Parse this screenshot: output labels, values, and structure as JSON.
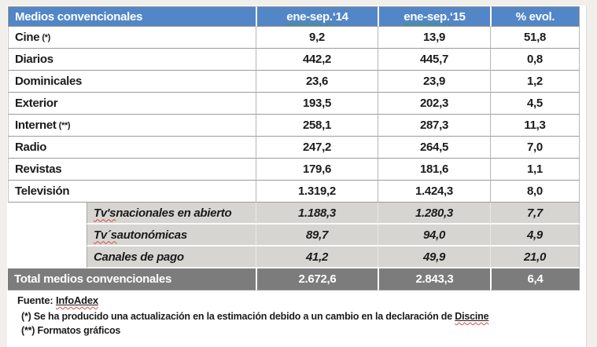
{
  "table": {
    "header": {
      "title": "Medios convencionales",
      "col14_head": "ene-sep.",
      "col14_year": " ‘14",
      "col15_head": "ene-sep.",
      "col15_year": " ‘15",
      "evol": "% evol."
    },
    "rows": [
      {
        "label": "Cine",
        "note": "(*)",
        "v14": "9,2",
        "v15": "13,9",
        "evol": "51,8"
      },
      {
        "label": "Diarios",
        "note": "",
        "v14": "442,2",
        "v15": "445,7",
        "evol": "0,8"
      },
      {
        "label": "Dominicales",
        "note": "",
        "v14": "23,6",
        "v15": "23,9",
        "evol": "1,2"
      },
      {
        "label": "Exterior",
        "note": "",
        "v14": "193,5",
        "v15": "202,3",
        "evol": "4,5"
      },
      {
        "label": "Internet",
        "note": "(**)",
        "v14": "258,1",
        "v15": "287,3",
        "evol": "11,3"
      },
      {
        "label": "Radio",
        "note": "",
        "v14": "247,2",
        "v15": "264,5",
        "evol": "7,0"
      },
      {
        "label": "Revistas",
        "note": "",
        "v14": "179,6",
        "v15": "181,6",
        "evol": "1,1"
      },
      {
        "label": "Televisión",
        "note": "",
        "v14": "1.319,2",
        "v15": "1.424,3",
        "evol": "8,0"
      }
    ],
    "subrows": [
      {
        "label_head": "Tv's",
        "label_rest": " nacionales en abierto",
        "v14": "1.188,3",
        "v15": "1.280,3",
        "evol": "7,7"
      },
      {
        "label_head": "Tv´s",
        "label_rest": " autonómicas",
        "v14": "89,7",
        "v15": "94,0",
        "evol": "4,9"
      },
      {
        "label_head": "",
        "label_rest": "Canales de pago",
        "v14": "41,2",
        "v15": "49,9",
        "evol": "21,0"
      }
    ],
    "total": {
      "label": "Total medios convencionales",
      "v14": "2.672,6",
      "v15": "2.843,3",
      "evol": "6,4"
    }
  },
  "footer": {
    "fuente_label": "Fuente: ",
    "fuente_link": "InfoAdex",
    "note1_prefix": "(*)  Se ha producido una actualización en la estimación debido a un cambio en la declaración de ",
    "note1_word": "Discine",
    "note2": "(**) Formatos gráficos"
  },
  "colors": {
    "header_bg": "#5286C7",
    "subrow_bg": "#D7D5D2",
    "total_bg": "#7C7C7C",
    "gridline": "#9B9B9B"
  }
}
